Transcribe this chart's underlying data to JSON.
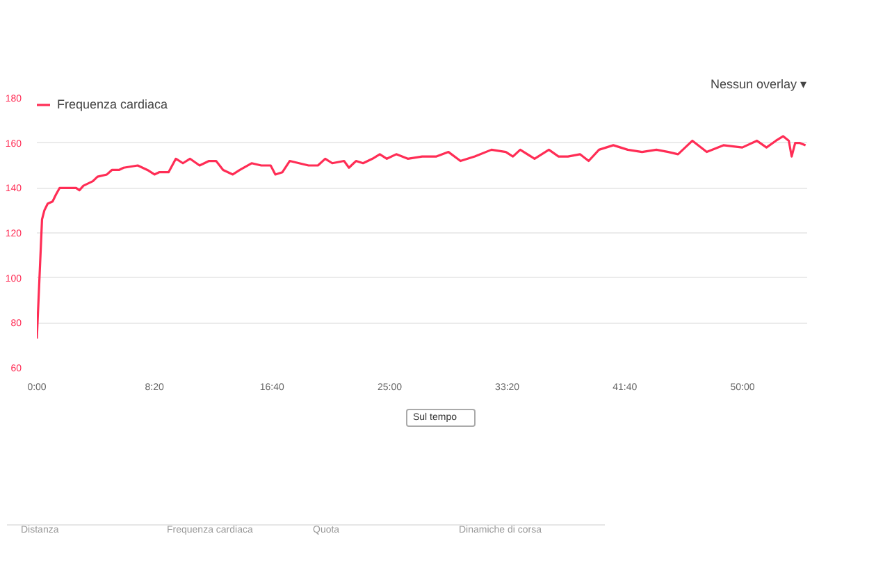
{
  "chart_data": {
    "type": "line",
    "x": [
      0,
      22,
      32,
      46,
      67,
      81,
      97,
      167,
      181,
      198,
      238,
      258,
      298,
      319,
      349,
      369,
      429,
      470,
      500,
      520,
      560,
      591,
      621,
      651,
      692,
      732,
      762,
      792,
      833,
      863,
      913,
      954,
      994,
      1014,
      1044,
      1075,
      1115,
      1155,
      1195,
      1226,
      1256,
      1306,
      1327,
      1357,
      1387,
      1427,
      1458,
      1488,
      1528,
      1577,
      1638,
      1699,
      1750,
      1801,
      1862,
      1933,
      1994,
      2024,
      2055,
      2116,
      2177,
      2218,
      2258,
      2309,
      2346,
      2390,
      2451,
      2512,
      2573,
      2634,
      2685,
      2726,
      2787,
      2848,
      2919,
      2999,
      3020,
      3061,
      3102,
      3142,
      3173,
      3197,
      3209,
      3224,
      3244,
      3268
    ],
    "series": [
      {
        "name": "Frequenza cardiaca",
        "color": "#ff2d55",
        "values": [
          73,
          126,
          130,
          133,
          134,
          137,
          140,
          140,
          139,
          141,
          143,
          145,
          146,
          148,
          148,
          149,
          150,
          148,
          146,
          147,
          147,
          153,
          151,
          153,
          150,
          152,
          152,
          148,
          146,
          148,
          151,
          150,
          150,
          146,
          147,
          152,
          151,
          150,
          150,
          153,
          151,
          152,
          149,
          152,
          151,
          153,
          155,
          153,
          155,
          153,
          154,
          154,
          156,
          152,
          154,
          157,
          156,
          154,
          157,
          153,
          157,
          154,
          154,
          155,
          152,
          157,
          159,
          157,
          156,
          157,
          156,
          155,
          161,
          156,
          159,
          158,
          159,
          161,
          158,
          161,
          163,
          161,
          154,
          160,
          160,
          159
        ]
      }
    ],
    "xlim": [
      0,
      3275
    ],
    "ylim": [
      60,
      180
    ],
    "xticks": [
      {
        "value": 0,
        "label": "0:00"
      },
      {
        "value": 500,
        "label": "8:20"
      },
      {
        "value": 1000,
        "label": "16:40"
      },
      {
        "value": 1500,
        "label": "25:00"
      },
      {
        "value": 2000,
        "label": "33:20"
      },
      {
        "value": 2500,
        "label": "41:40"
      },
      {
        "value": 3000,
        "label": "50:00"
      }
    ],
    "yticks": [
      60,
      80,
      100,
      120,
      140,
      160,
      180
    ],
    "grid": "y",
    "legend": "top left",
    "marker": "none",
    "line_style": "solid",
    "annotations": [
      "Nessun overlay ▾",
      "Sul tempo",
      "Distanza",
      "Frequenza cardiaca",
      "Quota",
      "Dinamiche di corsa"
    ]
  }
}
